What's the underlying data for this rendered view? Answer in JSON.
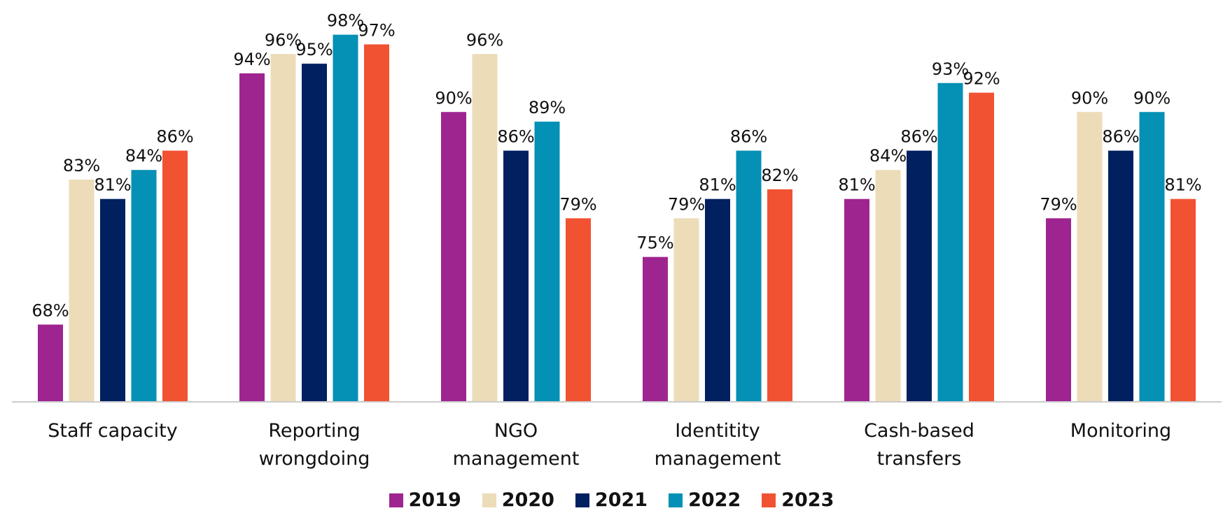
{
  "chart_data": {
    "type": "bar",
    "categories": [
      "Staff capacity",
      "Reporting wrongdoing",
      "NGO management",
      "Identitity management",
      "Cash-based transfers",
      "Monitoring"
    ],
    "series": [
      {
        "name": "2019",
        "color": "#9e248f",
        "values": [
          68,
          94,
          90,
          75,
          81,
          79
        ],
        "value_labels": [
          "68%",
          "94%",
          "90%",
          "75%",
          "81%",
          "79%"
        ]
      },
      {
        "name": "2020",
        "color": "#ecdcb8",
        "values": [
          83,
          96,
          96,
          79,
          84,
          90
        ],
        "value_labels": [
          "83%",
          "96%",
          "96%",
          "79%",
          "84%",
          "90%"
        ]
      },
      {
        "name": "2021",
        "color": "#002060",
        "values": [
          81,
          95,
          86,
          81,
          86,
          86
        ],
        "value_labels": [
          "81%",
          "95%",
          "86%",
          "81%",
          "86%",
          "86%"
        ]
      },
      {
        "name": "2022",
        "color": "#0590b5",
        "values": [
          84,
          98,
          89,
          86,
          93,
          90
        ],
        "value_labels": [
          "84%",
          "98%",
          "89%",
          "86%",
          "93%",
          "90%"
        ]
      },
      {
        "name": "2023",
        "color": "#f15232",
        "values": [
          86,
          97,
          79,
          82,
          92,
          81
        ],
        "value_labels": [
          "86%",
          "97%",
          "79%",
          "82%",
          "92%",
          "81%"
        ]
      }
    ],
    "ylim": [
      60,
      100
    ],
    "legend": "bottom"
  }
}
